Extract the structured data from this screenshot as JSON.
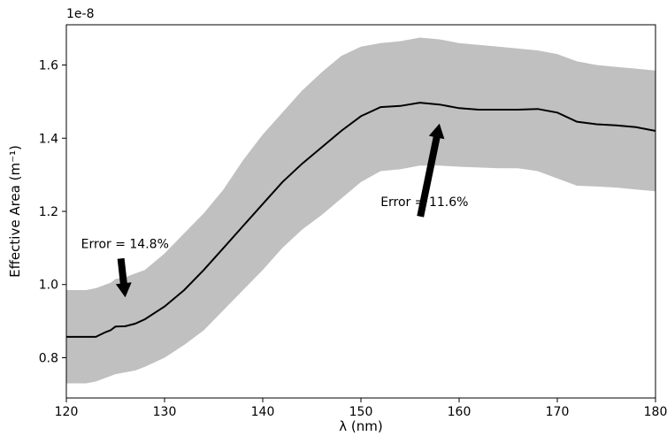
{
  "chart_data": {
    "type": "line",
    "title": "",
    "xlabel": "λ (nm)",
    "ylabel": "Effective Area (m⁻¹)",
    "offset_text": "1e-8",
    "scale": 1e-08,
    "xlim": [
      120,
      180
    ],
    "ylim": [
      0.69,
      1.71
    ],
    "xticks": [
      120,
      130,
      140,
      150,
      160,
      170,
      180
    ],
    "yticks": [
      0.8,
      1.0,
      1.2,
      1.4,
      1.6
    ],
    "grid": false,
    "line_color": "#000000",
    "band_color": "#c0c0c0",
    "series": [
      {
        "x": [
          120,
          121,
          122,
          123,
          124,
          124.5,
          125,
          126,
          127,
          128,
          130,
          132,
          134,
          136,
          138,
          140,
          142,
          144,
          146,
          148,
          150,
          152,
          154,
          156,
          158,
          160,
          162,
          164,
          166,
          168,
          170,
          172,
          174,
          176,
          178,
          180
        ],
        "y": [
          0.857,
          0.857,
          0.857,
          0.857,
          0.87,
          0.875,
          0.885,
          0.886,
          0.893,
          0.905,
          0.94,
          0.985,
          1.04,
          1.1,
          1.16,
          1.22,
          1.28,
          1.33,
          1.375,
          1.42,
          1.46,
          1.485,
          1.488,
          1.497,
          1.492,
          1.482,
          1.478,
          1.478,
          1.478,
          1.48,
          1.47,
          1.445,
          1.438,
          1.435,
          1.43,
          1.42
        ],
        "lower": [
          0.73,
          0.73,
          0.73,
          0.735,
          0.745,
          0.75,
          0.755,
          0.76,
          0.765,
          0.775,
          0.8,
          0.835,
          0.875,
          0.93,
          0.985,
          1.04,
          1.1,
          1.15,
          1.19,
          1.235,
          1.28,
          1.31,
          1.315,
          1.325,
          1.325,
          1.322,
          1.32,
          1.318,
          1.318,
          1.31,
          1.29,
          1.27,
          1.268,
          1.265,
          1.26,
          1.255
        ],
        "upper": [
          0.985,
          0.985,
          0.985,
          0.99,
          1.0,
          1.005,
          1.015,
          1.02,
          1.03,
          1.04,
          1.085,
          1.14,
          1.195,
          1.26,
          1.34,
          1.41,
          1.47,
          1.53,
          1.58,
          1.625,
          1.65,
          1.66,
          1.665,
          1.675,
          1.67,
          1.66,
          1.655,
          1.65,
          1.645,
          1.64,
          1.63,
          1.61,
          1.6,
          1.595,
          1.59,
          1.585
        ]
      }
    ],
    "annotations": [
      {
        "text": "Error = 14.8%",
        "xy": [
          126,
          0.965
        ],
        "xytext": [
          121.5,
          1.1
        ]
      },
      {
        "text": "Error = 11.6%",
        "xy": [
          158,
          1.44
        ],
        "xytext": [
          152,
          1.215
        ]
      }
    ]
  }
}
